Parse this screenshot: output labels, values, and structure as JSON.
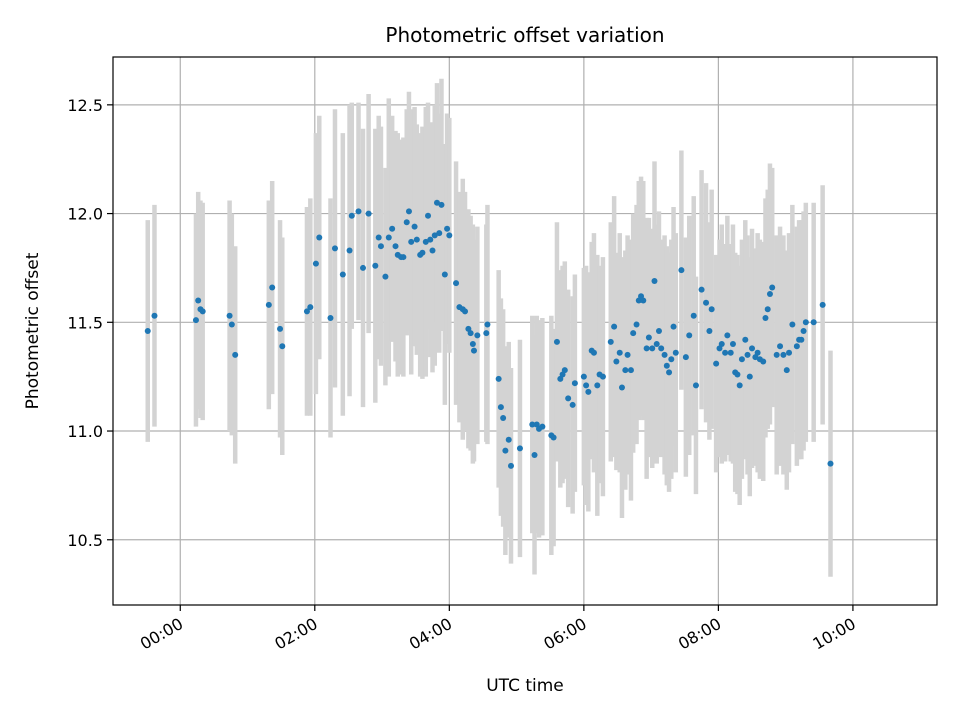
{
  "chart_data": {
    "type": "scatter",
    "title": "Photometric offset variation",
    "xlabel": "UTC time",
    "ylabel": "Photometric offset",
    "x_ticks": [
      "00:00",
      "02:00",
      "04:00",
      "06:00",
      "08:00",
      "10:00"
    ],
    "y_ticks": [
      "10.5",
      "11.0",
      "11.5",
      "12.0",
      "12.5"
    ],
    "xlim": [
      "-01:00",
      "11:15"
    ],
    "ylim": [
      10.2,
      12.72
    ],
    "grid": true,
    "colors": {
      "point": "#1f77b4",
      "errorbar": "#d3d3d3",
      "grid": "#b0b0b0"
    },
    "series": [
      {
        "points": [
          {
            "t": "23:31",
            "y": 11.46,
            "err": 0.51
          },
          {
            "t": "23:37",
            "y": 11.53,
            "err": 0.51
          },
          {
            "t": "00:14",
            "y": 11.51,
            "err": 0.49
          },
          {
            "t": "00:16",
            "y": 11.6,
            "err": 0.5
          },
          {
            "t": "00:18",
            "y": 11.56,
            "err": 0.5
          },
          {
            "t": "00:20",
            "y": 11.55,
            "err": 0.5
          },
          {
            "t": "00:44",
            "y": 11.53,
            "err": 0.53
          },
          {
            "t": "00:46",
            "y": 11.49,
            "err": 0.51
          },
          {
            "t": "00:49",
            "y": 11.35,
            "err": 0.5
          },
          {
            "t": "01:19",
            "y": 11.58,
            "err": 0.48
          },
          {
            "t": "01:22",
            "y": 11.66,
            "err": 0.49
          },
          {
            "t": "01:29",
            "y": 11.47,
            "err": 0.5
          },
          {
            "t": "01:31",
            "y": 11.39,
            "err": 0.5
          },
          {
            "t": "01:53",
            "y": 11.55,
            "err": 0.48
          },
          {
            "t": "01:56",
            "y": 11.57,
            "err": 0.5
          },
          {
            "t": "02:01",
            "y": 11.77,
            "err": 0.6
          },
          {
            "t": "02:04",
            "y": 11.89,
            "err": 0.56
          },
          {
            "t": "02:14",
            "y": 11.52,
            "err": 0.55
          },
          {
            "t": "02:18",
            "y": 11.84,
            "err": 0.64
          },
          {
            "t": "02:25",
            "y": 11.72,
            "err": 0.65
          },
          {
            "t": "02:31",
            "y": 11.83,
            "err": 0.67
          },
          {
            "t": "02:33",
            "y": 11.99,
            "err": 0.52
          },
          {
            "t": "02:39",
            "y": 12.01,
            "err": 0.5
          },
          {
            "t": "02:43",
            "y": 11.75,
            "err": 0.64
          },
          {
            "t": "02:48",
            "y": 12.0,
            "err": 0.55
          },
          {
            "t": "02:54",
            "y": 11.76,
            "err": 0.63
          },
          {
            "t": "02:57",
            "y": 11.89,
            "err": 0.56
          },
          {
            "t": "02:59",
            "y": 11.85,
            "err": 0.55
          },
          {
            "t": "03:03",
            "y": 11.71,
            "err": 0.5
          },
          {
            "t": "03:06",
            "y": 11.89,
            "err": 0.64
          },
          {
            "t": "03:09",
            "y": 11.93,
            "err": 0.52
          },
          {
            "t": "03:12",
            "y": 11.85,
            "err": 0.53
          },
          {
            "t": "03:14",
            "y": 11.81,
            "err": 0.56
          },
          {
            "t": "03:17",
            "y": 11.8,
            "err": 0.54
          },
          {
            "t": "03:19",
            "y": 11.8,
            "err": 0.55
          },
          {
            "t": "03:22",
            "y": 11.96,
            "err": 0.52
          },
          {
            "t": "03:24",
            "y": 12.01,
            "err": 0.55
          },
          {
            "t": "03:26",
            "y": 11.87,
            "err": 0.61
          },
          {
            "t": "03:29",
            "y": 11.94,
            "err": 0.55
          },
          {
            "t": "03:31",
            "y": 11.88,
            "err": 0.53
          },
          {
            "t": "03:34",
            "y": 11.81,
            "err": 0.56
          },
          {
            "t": "03:36",
            "y": 11.82,
            "err": 0.58
          },
          {
            "t": "03:39",
            "y": 11.87,
            "err": 0.62
          },
          {
            "t": "03:41",
            "y": 11.99,
            "err": 0.52
          },
          {
            "t": "03:43",
            "y": 11.88,
            "err": 0.54
          },
          {
            "t": "03:45",
            "y": 11.83,
            "err": 0.56
          },
          {
            "t": "03:47",
            "y": 11.9,
            "err": 0.6
          },
          {
            "t": "03:49",
            "y": 12.05,
            "err": 0.55
          },
          {
            "t": "03:51",
            "y": 11.91,
            "err": 0.55
          },
          {
            "t": "03:53",
            "y": 12.04,
            "err": 0.58
          },
          {
            "t": "03:56",
            "y": 11.72,
            "err": 0.6
          },
          {
            "t": "03:58",
            "y": 11.93,
            "err": 0.53
          },
          {
            "t": "04:00",
            "y": 11.9,
            "err": 0.54
          },
          {
            "t": "04:06",
            "y": 11.68,
            "err": 0.56
          },
          {
            "t": "04:09",
            "y": 11.57,
            "err": 0.53
          },
          {
            "t": "04:12",
            "y": 11.56,
            "err": 0.6
          },
          {
            "t": "04:14",
            "y": 11.55,
            "err": 0.55
          },
          {
            "t": "04:17",
            "y": 11.47,
            "err": 0.55
          },
          {
            "t": "04:19",
            "y": 11.45,
            "err": 0.54
          },
          {
            "t": "04:21",
            "y": 11.4,
            "err": 0.55
          },
          {
            "t": "04:22",
            "y": 11.37,
            "err": 0.51
          },
          {
            "t": "04:25",
            "y": 11.44,
            "err": 0.5
          },
          {
            "t": "04:33",
            "y": 11.45,
            "err": 0.5
          },
          {
            "t": "04:34",
            "y": 11.49,
            "err": 0.55
          },
          {
            "t": "04:44",
            "y": 11.24,
            "err": 0.5
          },
          {
            "t": "04:46",
            "y": 11.11,
            "err": 0.5
          },
          {
            "t": "04:48",
            "y": 11.06,
            "err": 0.5
          },
          {
            "t": "04:50",
            "y": 10.91,
            "err": 0.48
          },
          {
            "t": "04:53",
            "y": 10.96,
            "err": 0.45
          },
          {
            "t": "04:55",
            "y": 10.84,
            "err": 0.45
          },
          {
            "t": "05:03",
            "y": 10.92,
            "err": 0.5
          },
          {
            "t": "05:14",
            "y": 11.03,
            "err": 0.5
          },
          {
            "t": "05:16",
            "y": 10.89,
            "err": 0.55
          },
          {
            "t": "05:18",
            "y": 11.03,
            "err": 0.5
          },
          {
            "t": "05:20",
            "y": 11.01,
            "err": 0.5
          },
          {
            "t": "05:23",
            "y": 11.02,
            "err": 0.5
          },
          {
            "t": "05:31",
            "y": 10.98,
            "err": 0.55
          },
          {
            "t": "05:33",
            "y": 10.97,
            "err": 0.5
          },
          {
            "t": "05:36",
            "y": 11.41,
            "err": 0.55
          },
          {
            "t": "05:39",
            "y": 11.24,
            "err": 0.5
          },
          {
            "t": "05:41",
            "y": 11.26,
            "err": 0.5
          },
          {
            "t": "05:43",
            "y": 11.28,
            "err": 0.5
          },
          {
            "t": "05:46",
            "y": 11.15,
            "err": 0.5
          },
          {
            "t": "05:50",
            "y": 11.12,
            "err": 0.5
          },
          {
            "t": "05:52",
            "y": 11.22,
            "err": 0.5
          },
          {
            "t": "06:00",
            "y": 11.25,
            "err": 0.5
          },
          {
            "t": "06:02",
            "y": 11.21,
            "err": 0.55
          },
          {
            "t": "06:04",
            "y": 11.18,
            "err": 0.55
          },
          {
            "t": "06:07",
            "y": 11.37,
            "err": 0.5
          },
          {
            "t": "06:09",
            "y": 11.36,
            "err": 0.55
          },
          {
            "t": "06:12",
            "y": 11.21,
            "err": 0.6
          },
          {
            "t": "06:14",
            "y": 11.26,
            "err": 0.5
          },
          {
            "t": "06:17",
            "y": 11.25,
            "err": 0.55
          },
          {
            "t": "06:24",
            "y": 11.41,
            "err": 0.55
          },
          {
            "t": "06:27",
            "y": 11.48,
            "err": 0.6
          },
          {
            "t": "06:29",
            "y": 11.32,
            "err": 0.5
          },
          {
            "t": "06:32",
            "y": 11.36,
            "err": 0.55
          },
          {
            "t": "06:34",
            "y": 11.2,
            "err": 0.6
          },
          {
            "t": "06:37",
            "y": 11.28,
            "err": 0.55
          },
          {
            "t": "06:39",
            "y": 11.35,
            "err": 0.55
          },
          {
            "t": "06:42",
            "y": 11.28,
            "err": 0.6
          },
          {
            "t": "06:44",
            "y": 11.45,
            "err": 0.55
          },
          {
            "t": "06:47",
            "y": 11.49,
            "err": 0.55
          },
          {
            "t": "06:49",
            "y": 11.6,
            "err": 0.55
          },
          {
            "t": "06:51",
            "y": 11.62,
            "err": 0.55
          },
          {
            "t": "06:53",
            "y": 11.6,
            "err": 0.55
          },
          {
            "t": "06:56",
            "y": 11.38,
            "err": 0.6
          },
          {
            "t": "06:58",
            "y": 11.43,
            "err": 0.55
          },
          {
            "t": "07:01",
            "y": 11.38,
            "err": 0.55
          },
          {
            "t": "07:03",
            "y": 11.69,
            "err": 0.55
          },
          {
            "t": "07:05",
            "y": 11.4,
            "err": 0.55
          },
          {
            "t": "07:07",
            "y": 11.46,
            "err": 0.55
          },
          {
            "t": "07:09",
            "y": 11.38,
            "err": 0.5
          },
          {
            "t": "07:12",
            "y": 11.35,
            "err": 0.55
          },
          {
            "t": "07:14",
            "y": 11.3,
            "err": 0.55
          },
          {
            "t": "07:16",
            "y": 11.27,
            "err": 0.55
          },
          {
            "t": "07:18",
            "y": 11.33,
            "err": 0.55
          },
          {
            "t": "07:20",
            "y": 11.48,
            "err": 0.55
          },
          {
            "t": "07:22",
            "y": 11.36,
            "err": 0.55
          },
          {
            "t": "07:27",
            "y": 11.74,
            "err": 0.55
          },
          {
            "t": "07:31",
            "y": 11.34,
            "err": 0.55
          },
          {
            "t": "07:34",
            "y": 11.44,
            "err": 0.55
          },
          {
            "t": "07:38",
            "y": 11.53,
            "err": 0.55
          },
          {
            "t": "07:40",
            "y": 11.21,
            "err": 0.5
          },
          {
            "t": "07:45",
            "y": 11.65,
            "err": 0.55
          },
          {
            "t": "07:49",
            "y": 11.59,
            "err": 0.55
          },
          {
            "t": "07:52",
            "y": 11.46,
            "err": 0.5
          },
          {
            "t": "07:54",
            "y": 11.56,
            "err": 0.55
          },
          {
            "t": "07:58",
            "y": 11.31,
            "err": 0.5
          },
          {
            "t": "08:01",
            "y": 11.38,
            "err": 0.5
          },
          {
            "t": "08:03",
            "y": 11.4,
            "err": 0.55
          },
          {
            "t": "08:06",
            "y": 11.36,
            "err": 0.5
          },
          {
            "t": "08:08",
            "y": 11.44,
            "err": 0.55
          },
          {
            "t": "08:11",
            "y": 11.36,
            "err": 0.5
          },
          {
            "t": "08:13",
            "y": 11.4,
            "err": 0.55
          },
          {
            "t": "08:15",
            "y": 11.27,
            "err": 0.55
          },
          {
            "t": "08:17",
            "y": 11.26,
            "err": 0.55
          },
          {
            "t": "08:19",
            "y": 11.21,
            "err": 0.55
          },
          {
            "t": "08:21",
            "y": 11.33,
            "err": 0.55
          },
          {
            "t": "08:24",
            "y": 11.42,
            "err": 0.55
          },
          {
            "t": "08:26",
            "y": 11.35,
            "err": 0.55
          },
          {
            "t": "08:28",
            "y": 11.25,
            "err": 0.55
          },
          {
            "t": "08:30",
            "y": 11.38,
            "err": 0.55
          },
          {
            "t": "08:33",
            "y": 11.34,
            "err": 0.5
          },
          {
            "t": "08:35",
            "y": 11.36,
            "err": 0.55
          },
          {
            "t": "08:37",
            "y": 11.33,
            "err": 0.55
          },
          {
            "t": "08:40",
            "y": 11.32,
            "err": 0.55
          },
          {
            "t": "08:42",
            "y": 11.52,
            "err": 0.55
          },
          {
            "t": "08:44",
            "y": 11.56,
            "err": 0.55
          },
          {
            "t": "08:46",
            "y": 11.63,
            "err": 0.6
          },
          {
            "t": "08:48",
            "y": 11.66,
            "err": 0.55
          },
          {
            "t": "08:52",
            "y": 11.35,
            "err": 0.55
          },
          {
            "t": "08:55",
            "y": 11.39,
            "err": 0.55
          },
          {
            "t": "08:58",
            "y": 11.35,
            "err": 0.55
          },
          {
            "t": "09:01",
            "y": 11.28,
            "err": 0.55
          },
          {
            "t": "09:03",
            "y": 11.36,
            "err": 0.55
          },
          {
            "t": "09:06",
            "y": 11.49,
            "err": 0.55
          },
          {
            "t": "09:10",
            "y": 11.39,
            "err": 0.55
          },
          {
            "t": "09:12",
            "y": 11.42,
            "err": 0.55
          },
          {
            "t": "09:14",
            "y": 11.42,
            "err": 0.55
          },
          {
            "t": "09:16",
            "y": 11.46,
            "err": 0.55
          },
          {
            "t": "09:18",
            "y": 11.5,
            "err": 0.55
          },
          {
            "t": "09:25",
            "y": 11.5,
            "err": 0.55
          },
          {
            "t": "09:33",
            "y": 11.58,
            "err": 0.55
          },
          {
            "t": "09:40",
            "y": 10.85,
            "err": 0.52
          }
        ]
      }
    ]
  }
}
